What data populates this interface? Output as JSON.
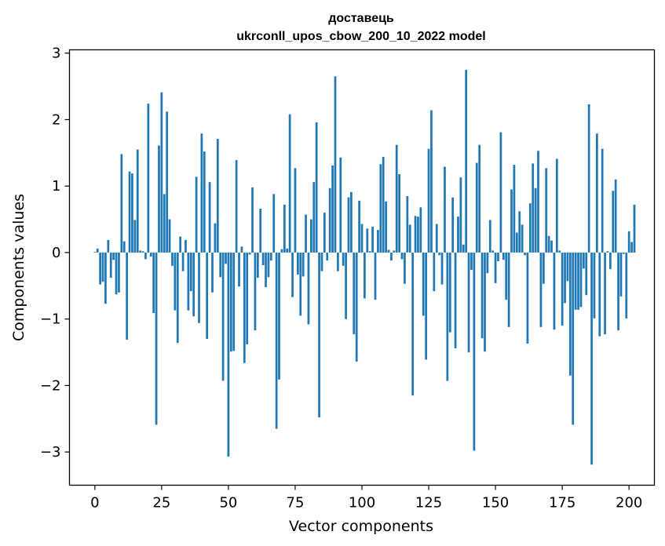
{
  "chart_data": {
    "type": "bar",
    "title": [
      "доставець",
      "ukrconll_upos_cbow_200_10_2022 model"
    ],
    "xlabel": "Vector components",
    "ylabel": "Components values",
    "xlim": [
      -9.5,
      209.5
    ],
    "ylim": [
      -3.5,
      3.05
    ],
    "xticks": [
      0,
      25,
      50,
      75,
      100,
      125,
      150,
      175,
      200
    ],
    "yticks": [
      -3,
      -2,
      -1,
      0,
      1,
      2,
      3
    ],
    "ytick_labels": [
      "−3",
      "−2",
      "−1",
      "0",
      "1",
      "2",
      "3"
    ],
    "grid": false,
    "legend": "none",
    "bar_color": "#1f77b4",
    "values": [
      0.01,
      0.06,
      -0.48,
      -0.44,
      -0.77,
      0.19,
      -0.38,
      -0.11,
      -0.63,
      -0.6,
      1.48,
      0.17,
      -1.31,
      1.22,
      1.19,
      0.49,
      1.55,
      0.03,
      0.02,
      -0.1,
      2.24,
      -0.06,
      -0.91,
      -2.59,
      1.61,
      2.41,
      0.88,
      2.12,
      0.5,
      -0.2,
      -0.87,
      -1.36,
      0.24,
      -0.28,
      0.19,
      -0.87,
      -0.58,
      -0.96,
      1.14,
      -1.06,
      1.79,
      1.52,
      -1.3,
      1.06,
      -0.6,
      0.44,
      1.71,
      -0.37,
      -1.93,
      -0.17,
      -3.07,
      -1.49,
      -1.48,
      1.39,
      -0.51,
      0.09,
      -1.66,
      -1.38,
      -0.03,
      0.98,
      -1.17,
      -0.38,
      0.66,
      -0.19,
      -0.52,
      -0.37,
      -0.12,
      0.88,
      -2.65,
      -1.91,
      0.05,
      0.72,
      0.06,
      2.08,
      -0.67,
      1.27,
      -0.33,
      -0.95,
      -0.36,
      0.57,
      -1.08,
      0.5,
      1.06,
      1.96,
      -2.48,
      -0.28,
      0.6,
      -0.12,
      0.97,
      1.31,
      2.65,
      -0.28,
      1.43,
      -0.2,
      -1.0,
      0.83,
      0.91,
      -1.23,
      -1.64,
      0.78,
      0.43,
      -0.69,
      0.36,
      0.02,
      0.39,
      -0.71,
      0.34,
      1.33,
      1.44,
      0.77,
      0.04,
      -0.12,
      0.03,
      1.62,
      1.18,
      -0.1,
      -0.47,
      0.85,
      0.42,
      -2.15,
      0.55,
      0.54,
      0.68,
      -0.95,
      -1.61,
      1.56,
      2.14,
      -0.58,
      0.43,
      -0.04,
      -0.48,
      1.29,
      -1.93,
      -1.2,
      0.83,
      -1.44,
      0.54,
      1.13,
      0.12,
      2.75,
      -1.5,
      -0.26,
      -2.98,
      1.35,
      1.62,
      -1.29,
      -1.49,
      -0.31,
      0.49,
      0.03,
      -0.46,
      -0.13,
      1.81,
      -0.11,
      -0.71,
      -1.12,
      0.95,
      1.32,
      0.3,
      0.62,
      0.42,
      -0.04,
      -1.37,
      0.74,
      1.34,
      0.97,
      1.53,
      -1.12,
      -0.47,
      1.27,
      0.25,
      0.18,
      -1.16,
      1.41,
      0.03,
      -1.1,
      -0.76,
      -0.43,
      -1.85,
      -2.59,
      -0.86,
      -0.86,
      -0.82,
      -0.24,
      -0.64,
      2.23,
      -3.19,
      -0.99,
      1.79,
      -1.26,
      1.56,
      -1.23,
      0.02,
      -0.25,
      0.93,
      1.1,
      -1.17,
      -0.66,
      -0.02,
      -0.99,
      0.32,
      0.16,
      0.72
    ]
  }
}
